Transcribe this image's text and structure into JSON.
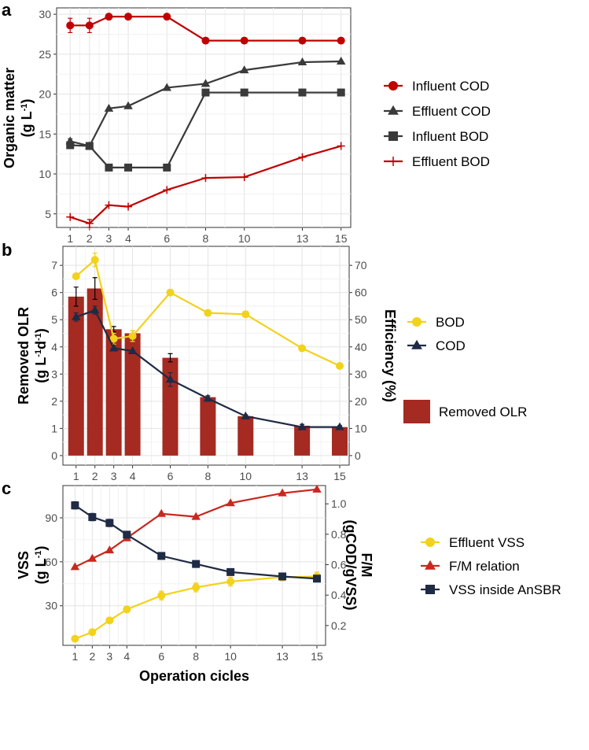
{
  "x_ticks": [
    1,
    2,
    3,
    4,
    6,
    8,
    10,
    13,
    15
  ],
  "xlabel": "Operation cicles",
  "chart_data": [
    {
      "panel": "a",
      "type": "line",
      "ylabel_line1": "Organic matter",
      "ylabel_unit": "(g L",
      "ylabel_sup": "-1",
      "ylabel_close": ")",
      "y_ticks": [
        5,
        10,
        15,
        20,
        25,
        30
      ],
      "ylim": [
        3.3,
        30.8
      ],
      "series": [
        {
          "name": "Influent COD",
          "color": "#c00000",
          "marker": "circle",
          "values": [
            28.6,
            28.6,
            29.7,
            29.7,
            29.7,
            26.7,
            26.7,
            26.7,
            26.7
          ],
          "err": [
            0.9,
            0.9,
            0,
            0,
            0,
            0,
            0,
            0,
            0
          ]
        },
        {
          "name": "Effluent COD",
          "color": "#3a3a3a",
          "marker": "triangle",
          "values": [
            14.1,
            13.5,
            18.2,
            18.5,
            20.8,
            21.3,
            23.0,
            24.0,
            24.1
          ],
          "err": [
            0.3,
            0.3,
            0,
            0,
            0,
            0,
            0,
            0,
            0
          ]
        },
        {
          "name": "Influent BOD",
          "color": "#3a3a3a",
          "marker": "square",
          "values": [
            13.6,
            13.5,
            10.8,
            10.8,
            10.8,
            20.2,
            20.2,
            20.2,
            20.2
          ],
          "err": [
            0,
            0,
            0,
            0,
            0,
            0,
            0,
            0,
            0
          ]
        },
        {
          "name": "Effluent BOD",
          "color": "#c00000",
          "marker": "cross",
          "values": [
            4.6,
            3.8,
            6.1,
            5.9,
            8.0,
            9.5,
            9.6,
            12.1,
            13.5
          ],
          "err": [
            0,
            0.5,
            0,
            0,
            0,
            0,
            0,
            0,
            0
          ]
        }
      ]
    },
    {
      "panel": "b",
      "type": "bar+line",
      "ylabel_line1": "Removed OLR",
      "ylabel_unit": "(g L",
      "ylabel_sup1": "-1",
      "ylabel_mid": "d",
      "ylabel_sup2": "-1",
      "ylabel_close": ")",
      "y2label": "Efficiency (%)",
      "y_ticks": [
        0,
        1,
        2,
        3,
        4,
        5,
        6,
        7
      ],
      "y2_ticks": [
        0,
        10,
        20,
        30,
        40,
        50,
        60,
        70
      ],
      "ylim": [
        -0.35,
        7.7
      ],
      "y2lim": [
        -3.5,
        77
      ],
      "bars": {
        "name": "Removed OLR",
        "color": "#a52a22",
        "values": [
          5.85,
          6.15,
          4.65,
          4.5,
          3.6,
          2.15,
          1.45,
          1.1,
          1.05
        ],
        "err": [
          0.35,
          0.4,
          0.1,
          0.1,
          0.15,
          0.05,
          0.05,
          0.05,
          0.05
        ]
      },
      "series": [
        {
          "name": "BOD",
          "color": "#f2d21b",
          "marker": "circle",
          "values": [
            66,
            72,
            43,
            44,
            60,
            52.5,
            52,
            39.5,
            33
          ],
          "err": [
            0,
            2.5,
            2,
            2,
            0,
            0,
            0,
            0,
            0
          ]
        },
        {
          "name": "COD",
          "color": "#1f2a44",
          "marker": "triangle",
          "values": [
            51,
            53.5,
            39.5,
            38.5,
            28,
            21,
            14.5,
            10.5,
            10.5
          ],
          "err": [
            1.5,
            1.5,
            0,
            0,
            2.5,
            0,
            0,
            0,
            0
          ]
        }
      ]
    },
    {
      "panel": "c",
      "type": "line",
      "ylabel_line1": "VSS",
      "ylabel_unit": "(g L",
      "ylabel_sup": "-1",
      "ylabel_close": ")",
      "y2label_line1": "F/M",
      "y2label_line2": "(gCOD/gVSS)",
      "y_ticks": [
        30,
        60,
        90
      ],
      "y2_ticks": [
        0.2,
        0.4,
        0.6,
        0.8,
        1.0
      ],
      "y2_tick_labels": [
        "0.2",
        "0.4",
        "0.6",
        "0.8",
        "1.0"
      ],
      "ylim": [
        3,
        112
      ],
      "y2lim": [
        0.07,
        1.12
      ],
      "series": [
        {
          "name": "Effluent VSS",
          "color": "#f2d21b",
          "marker": "circle",
          "axis": "left",
          "values": [
            7.5,
            12,
            20,
            27.5,
            37,
            42.5,
            46.5,
            49.5,
            50
          ],
          "err": [
            0,
            0,
            1.5,
            2,
            3,
            3,
            3,
            2.5,
            3
          ]
        },
        {
          "name": "F/M relation",
          "color": "#c8281e",
          "marker": "triangle",
          "axis": "right",
          "values": [
            0.585,
            0.64,
            0.695,
            0.775,
            0.935,
            0.915,
            1.005,
            1.07,
            1.095
          ],
          "err": [
            0,
            0,
            0,
            0,
            0,
            0,
            0,
            0,
            0
          ]
        },
        {
          "name": "VSS inside AnSBR",
          "color": "#1f2a44",
          "marker": "square",
          "axis": "left",
          "values": [
            98.5,
            90.5,
            86.5,
            78.5,
            64,
            58.5,
            53,
            50,
            48.5
          ],
          "err": [
            2.5,
            2.5,
            2.5,
            0,
            1.5,
            0,
            0,
            0,
            0
          ]
        }
      ]
    }
  ]
}
